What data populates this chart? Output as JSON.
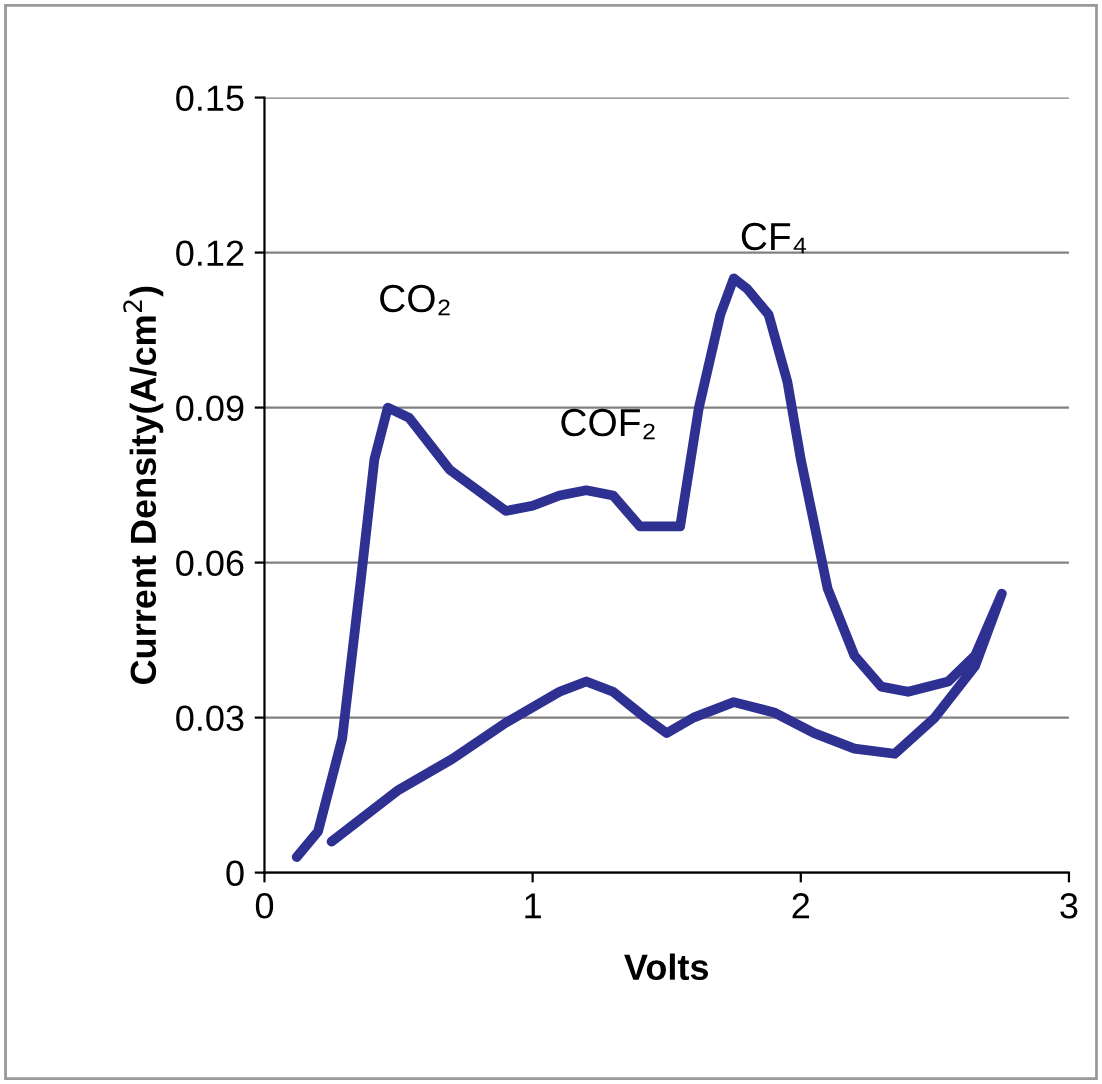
{
  "chart_data": {
    "type": "line",
    "xlabel": "Volts",
    "ylabel": "Current Density(A/cm$^{2}$)",
    "xlim": [
      0,
      3
    ],
    "xticks": [
      0,
      1,
      2,
      3
    ],
    "ylim": [
      0,
      0.15
    ],
    "yticks": [
      0,
      0.03,
      0.06,
      0.09,
      0.12,
      0.15
    ],
    "grid": "y",
    "legend": false,
    "marker": "none",
    "line_style": "solid",
    "series": [
      {
        "color": "#2e3192",
        "x": [
          0.12,
          0.2,
          0.29,
          0.36,
          0.41,
          0.46,
          0.54,
          0.69,
          0.9,
          1.0,
          1.1,
          1.2,
          1.3,
          1.4,
          1.55,
          1.62,
          1.7,
          1.75,
          1.8,
          1.88,
          1.95,
          2.0,
          2.1,
          2.2,
          2.3,
          2.4,
          2.55,
          2.65,
          2.75,
          2.65,
          2.5,
          2.35,
          2.2,
          2.05,
          1.9,
          1.75,
          1.6,
          1.5,
          1.42,
          1.3,
          1.2,
          1.1,
          0.9,
          0.7,
          0.5,
          0.25
        ],
        "values": [
          0.003,
          0.008,
          0.026,
          0.057,
          0.08,
          0.09,
          0.088,
          0.078,
          0.07,
          0.071,
          0.073,
          0.074,
          0.073,
          0.067,
          0.067,
          0.09,
          0.108,
          0.115,
          0.113,
          0.108,
          0.095,
          0.08,
          0.055,
          0.042,
          0.036,
          0.035,
          0.037,
          0.042,
          0.054,
          0.04,
          0.03,
          0.023,
          0.024,
          0.027,
          0.031,
          0.033,
          0.03,
          0.027,
          0.03,
          0.035,
          0.037,
          0.035,
          0.029,
          0.022,
          0.016,
          0.006
        ]
      }
    ],
    "annotations": [
      "CO₂",
      "COF₂",
      "CF₄"
    ]
  }
}
